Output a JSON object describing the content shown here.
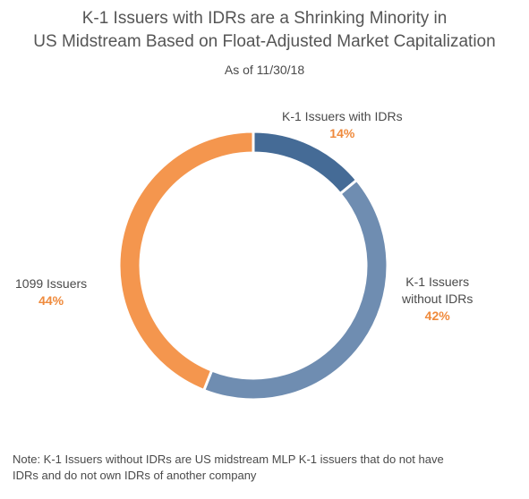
{
  "chart_data": {
    "type": "pie",
    "title_lines": [
      "K-1 Issuers with IDRs are a Shrinking Minority in",
      "US Midstream Based on Float-Adjusted Market Capitalization"
    ],
    "subtitle": "As of 11/30/18",
    "donut": true,
    "slices": [
      {
        "label": "K-1 Issuers with IDRs",
        "value": 14,
        "value_label": "14%",
        "color": "#456b96"
      },
      {
        "label_lines": [
          "K-1 Issuers",
          "without IDRs"
        ],
        "value": 42,
        "value_label": "42%",
        "color": "#6f8db1"
      },
      {
        "label": "1099 Issuers",
        "value": 44,
        "value_label": "44%",
        "color": "#f4964e"
      }
    ],
    "value_label_color": "#ef8a3c",
    "note_lines": [
      "Note: K-1 Issuers without IDRs are US midstream MLP K-1 issuers that do not have",
      "IDRs and do not own IDRs of another company"
    ]
  }
}
